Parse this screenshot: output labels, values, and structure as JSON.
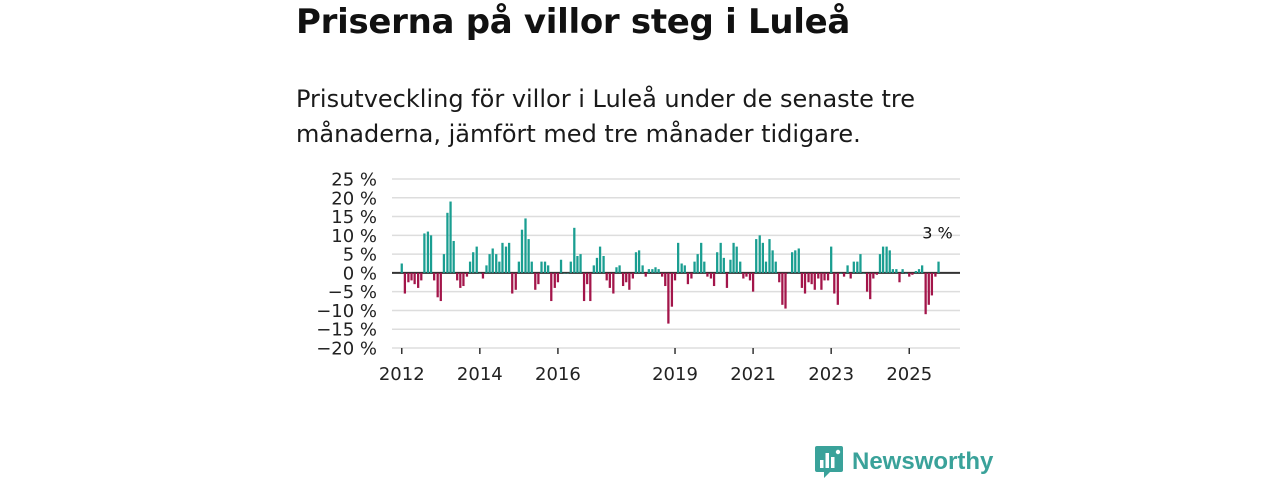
{
  "title": "Priserna på villor steg i Luleå",
  "subtitle": "Prisutveckling för villor i Luleå under de senaste tre månaderna, jämfört med tre månader tidigare.",
  "brand": "Newsworthy",
  "colors": {
    "positive": "#1a9e91",
    "negative": "#a3154a",
    "grid": "#dddddd",
    "zero": "#333333",
    "brand": "#3aa29a"
  },
  "chart_data": {
    "type": "bar",
    "ylim": [
      -20,
      25
    ],
    "yticks": [
      -20,
      -15,
      -10,
      -5,
      0,
      5,
      10,
      15,
      20,
      25
    ],
    "ytick_labels": [
      "−20 %",
      "−15 %",
      "−10 %",
      "−5 %",
      "0 %",
      "5 %",
      "10 %",
      "15 %",
      "20 %",
      "25 %"
    ],
    "xlim": [
      2011.75,
      2026.3
    ],
    "xticks": [
      2012,
      2014,
      2016,
      2019,
      2021,
      2023,
      2025
    ],
    "xtick_labels": [
      "2012",
      "2014",
      "2016",
      "2019",
      "2021",
      "2023",
      "2025"
    ],
    "annotation": {
      "text": "3 %",
      "x": 2025.75,
      "value": 3
    },
    "x": [
      2012.0,
      2012.08,
      2012.17,
      2012.25,
      2012.33,
      2012.42,
      2012.5,
      2012.58,
      2012.67,
      2012.75,
      2012.83,
      2012.92,
      2013.0,
      2013.08,
      2013.17,
      2013.25,
      2013.33,
      2013.42,
      2013.5,
      2013.58,
      2013.67,
      2013.75,
      2013.83,
      2013.92,
      2014.0,
      2014.08,
      2014.17,
      2014.25,
      2014.33,
      2014.42,
      2014.5,
      2014.58,
      2014.67,
      2014.75,
      2014.83,
      2014.92,
      2015.0,
      2015.08,
      2015.17,
      2015.25,
      2015.33,
      2015.42,
      2015.5,
      2015.58,
      2015.67,
      2015.75,
      2015.83,
      2015.92,
      2016.0,
      2016.08,
      2016.17,
      2016.25,
      2016.33,
      2016.42,
      2016.5,
      2016.58,
      2016.67,
      2016.75,
      2016.83,
      2016.92,
      2017.0,
      2017.08,
      2017.17,
      2017.25,
      2017.33,
      2017.42,
      2017.5,
      2017.58,
      2017.67,
      2017.75,
      2017.83,
      2017.92,
      2018.0,
      2018.08,
      2018.17,
      2018.25,
      2018.33,
      2018.42,
      2018.5,
      2018.58,
      2018.67,
      2018.75,
      2018.83,
      2018.92,
      2019.0,
      2019.08,
      2019.17,
      2019.25,
      2019.33,
      2019.42,
      2019.5,
      2019.58,
      2019.67,
      2019.75,
      2019.83,
      2019.92,
      2020.0,
      2020.08,
      2020.17,
      2020.25,
      2020.33,
      2020.42,
      2020.5,
      2020.58,
      2020.67,
      2020.75,
      2020.83,
      2020.92,
      2021.0,
      2021.08,
      2021.17,
      2021.25,
      2021.33,
      2021.42,
      2021.5,
      2021.58,
      2021.67,
      2021.75,
      2021.83,
      2021.92,
      2022.0,
      2022.08,
      2022.17,
      2022.25,
      2022.33,
      2022.42,
      2022.5,
      2022.58,
      2022.67,
      2022.75,
      2022.83,
      2022.92,
      2023.0,
      2023.08,
      2023.17,
      2023.25,
      2023.33,
      2023.42,
      2023.5,
      2023.58,
      2023.67,
      2023.75,
      2023.83,
      2023.92,
      2024.0,
      2024.08,
      2024.17,
      2024.25,
      2024.33,
      2024.42,
      2024.5,
      2024.58,
      2024.67,
      2024.75,
      2024.83,
      2024.92,
      2025.0,
      2025.08,
      2025.17,
      2025.25,
      2025.33,
      2025.42,
      2025.5,
      2025.58,
      2025.67,
      2025.75
    ],
    "values": [
      2.5,
      -5.5,
      -2.5,
      -2,
      -3,
      -4,
      -2,
      10.5,
      11,
      10,
      -2,
      -6.5,
      -7.5,
      5,
      16,
      19,
      8.5,
      -2,
      -4,
      -3.5,
      -1,
      3,
      5.5,
      7,
      0,
      -1.5,
      2,
      5,
      6.5,
      5,
      3,
      8,
      7,
      8,
      -5.5,
      -4.5,
      3,
      11.5,
      14.5,
      9,
      3,
      -4.5,
      -3,
      3,
      3,
      2,
      -7.5,
      -4,
      -2.5,
      3.5,
      0,
      0,
      3,
      12,
      4.5,
      5,
      -7.5,
      -3,
      -7.5,
      2,
      4,
      7,
      4.5,
      -2,
      -4,
      -5.5,
      1.5,
      2,
      -3.5,
      -2.5,
      -4.5,
      -1.5,
      5.5,
      6,
      2,
      -1,
      1,
      1,
      1.5,
      1,
      -1,
      -3.5,
      -13.5,
      -9,
      -2,
      8,
      2.5,
      2,
      -3,
      -1.5,
      3,
      5,
      8,
      3,
      -1,
      -1.5,
      -3.5,
      5.5,
      8,
      4,
      -4,
      3.5,
      8,
      7,
      3,
      -1.5,
      -1,
      -2,
      -5,
      9,
      10,
      8,
      3,
      9,
      6,
      3,
      -2.5,
      -8.5,
      -9.5,
      0,
      5.5,
      6,
      6.5,
      -4,
      -5.5,
      -2.5,
      -3,
      -4.5,
      -1.5,
      -4.5,
      -2,
      -2,
      7,
      -5.5,
      -8.5,
      0,
      -1,
      2,
      -1.5,
      3,
      3,
      5,
      0,
      -5,
      -7,
      -1.5,
      -0.5,
      5,
      7,
      7,
      6,
      1,
      1,
      -2.5,
      1,
      0,
      -1,
      -0.5,
      0.5,
      1,
      2,
      -11,
      -8.5,
      -6,
      -1,
      3
    ]
  }
}
